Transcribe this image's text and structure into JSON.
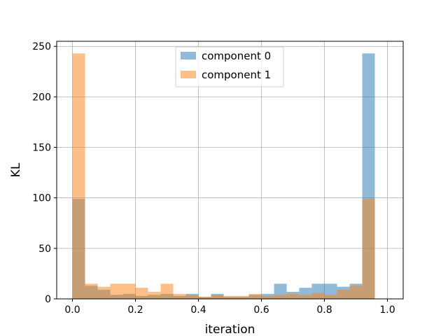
{
  "chart_data": {
    "type": "bar",
    "xlabel": "iteration",
    "ylabel": "KL",
    "xlim": [
      -0.05,
      1.05
    ],
    "ylim": [
      0,
      255
    ],
    "xticks": [
      "0.0",
      "0.2",
      "0.4",
      "0.6",
      "0.8",
      "1.0"
    ],
    "yticks": [
      "0",
      "50",
      "100",
      "150",
      "200",
      "250"
    ],
    "grid": true,
    "legend_position": "top-center",
    "bin_edges": [
      0,
      0.04,
      0.08,
      0.12,
      0.16,
      0.2,
      0.24,
      0.28,
      0.32,
      0.36,
      0.4,
      0.44,
      0.48,
      0.52,
      0.56,
      0.6,
      0.64,
      0.68,
      0.72,
      0.76,
      0.8,
      0.84,
      0.88,
      0.92,
      0.96,
      1.0
    ],
    "series": [
      {
        "name": "component 0",
        "color": "#1f77b4",
        "values": [
          99,
          13,
          9,
          4,
          5,
          3,
          4,
          5,
          3,
          5,
          2,
          5,
          2,
          2,
          4,
          5,
          15,
          7,
          11,
          15,
          15,
          12,
          15,
          243,
          0
        ]
      },
      {
        "name": "component 1",
        "color": "#ff7f0e",
        "values": [
          243,
          15,
          12,
          15,
          15,
          11,
          7,
          15,
          5,
          4,
          2,
          4,
          3,
          3,
          5,
          3,
          4,
          5,
          4,
          6,
          4,
          9,
          13,
          99,
          0
        ]
      }
    ]
  }
}
